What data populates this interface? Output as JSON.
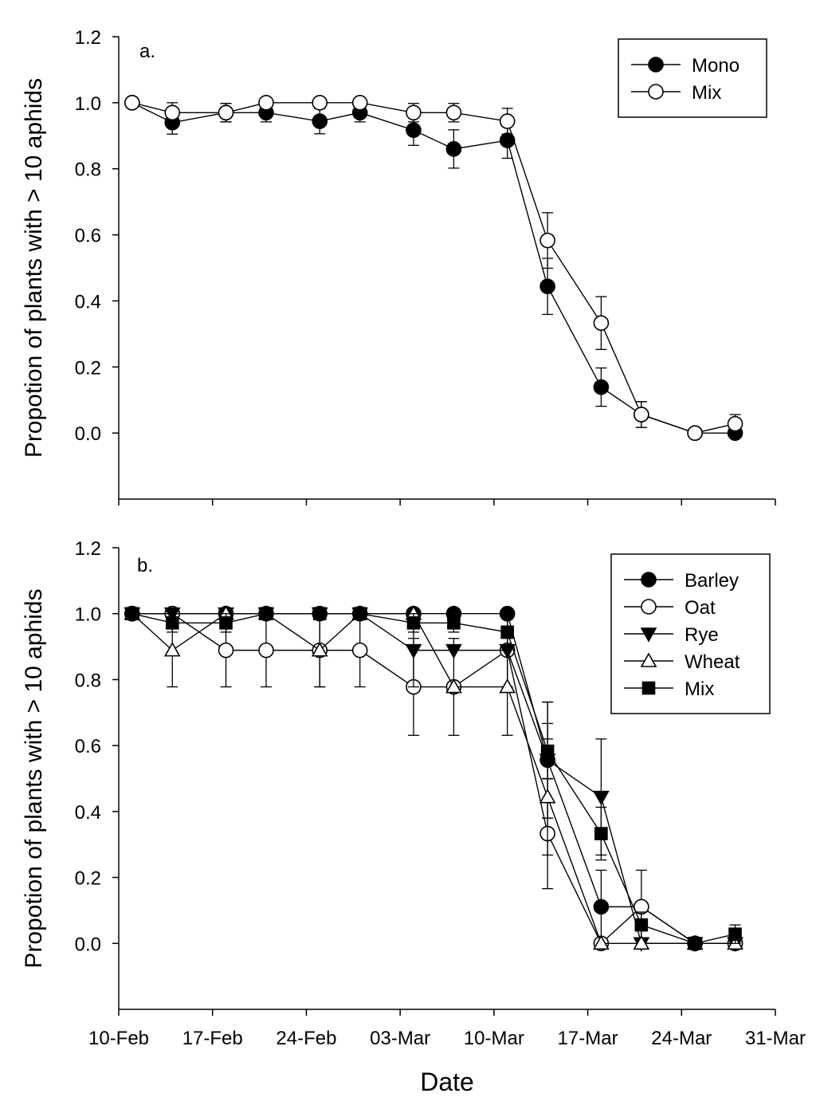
{
  "chart_data": [
    {
      "type": "line",
      "panel": "a.",
      "ylabel": "Propotion of plants with > 10 aphids",
      "xlabel": "",
      "ylim": [
        -0.2,
        1.2
      ],
      "yticks": [
        0.0,
        0.2,
        0.4,
        0.6,
        0.8,
        1.0,
        1.2
      ],
      "ytick_labels": [
        "0.0",
        "0.2",
        "0.4",
        "0.6",
        "0.8",
        "1.0",
        "1.2"
      ],
      "xlim": [
        0,
        49
      ],
      "xticks": [
        0,
        7,
        14,
        21,
        28,
        35,
        42,
        49
      ],
      "xtick_labels": [],
      "legend_position": "top-right",
      "series": [
        {
          "name": "Mono",
          "marker": "circle-filled",
          "x": [
            1,
            4,
            8,
            11,
            15,
            18,
            22,
            25,
            29,
            32,
            36,
            39,
            43,
            46
          ],
          "values": [
            1.0,
            0.94,
            0.97,
            0.97,
            0.944,
            0.97,
            0.917,
            0.86,
            0.886,
            0.444,
            0.139,
            0.056,
            0.0,
            0.0
          ],
          "errors": [
            0,
            0.035,
            0.028,
            0.028,
            0.038,
            0.028,
            0.046,
            0.058,
            0.054,
            0.085,
            0.058,
            0.039,
            0,
            0
          ]
        },
        {
          "name": "Mix",
          "marker": "circle-open",
          "x": [
            1,
            4,
            8,
            11,
            15,
            18,
            22,
            25,
            29,
            32,
            36,
            39,
            43,
            46
          ],
          "values": [
            1.0,
            0.97,
            0.97,
            1.0,
            1.0,
            1.0,
            0.97,
            0.97,
            0.944,
            0.583,
            0.333,
            0.056,
            0.0,
            0.028
          ],
          "errors": [
            0,
            0.03,
            0.028,
            0,
            0,
            0,
            0.028,
            0.028,
            0.039,
            0.084,
            0.08,
            0.039,
            0,
            0.028
          ]
        }
      ]
    },
    {
      "type": "line",
      "panel": "b.",
      "ylabel": "Propotion of plants with > 10 aphids",
      "xlabel": "Date",
      "ylim": [
        -0.2,
        1.2
      ],
      "yticks": [
        0.0,
        0.2,
        0.4,
        0.6,
        0.8,
        1.0,
        1.2
      ],
      "ytick_labels": [
        "0.0",
        "0.2",
        "0.4",
        "0.6",
        "0.8",
        "1.0",
        "1.2"
      ],
      "xlim": [
        0,
        49
      ],
      "xticks": [
        0,
        7,
        14,
        21,
        28,
        35,
        42,
        49
      ],
      "xtick_labels": [
        "10-Feb",
        "17-Feb",
        "24-Feb",
        "03-Mar",
        "10-Mar",
        "17-Mar",
        "24-Mar",
        "31-Mar"
      ],
      "legend_position": "top-right",
      "series": [
        {
          "name": "Barley",
          "marker": "circle-filled",
          "x": [
            1,
            4,
            8,
            11,
            15,
            18,
            22,
            25,
            29,
            32,
            36,
            39,
            43,
            46
          ],
          "values": [
            1.0,
            1.0,
            1.0,
            1.0,
            1.0,
            1.0,
            1.0,
            1.0,
            1.0,
            0.556,
            0.111,
            0.111,
            0.0,
            0.0
          ],
          "errors": [
            0,
            0,
            0,
            0,
            0,
            0,
            0,
            0,
            0,
            0.176,
            0.111,
            0,
            0,
            0
          ]
        },
        {
          "name": "Oat",
          "marker": "circle-open",
          "x": [
            1,
            4,
            8,
            11,
            15,
            18,
            22,
            25,
            29,
            32,
            36,
            39,
            43,
            46
          ],
          "values": [
            1.0,
            1.0,
            0.889,
            0.889,
            0.889,
            0.889,
            0.778,
            0.778,
            0.889,
            0.333,
            0.0,
            0.111,
            0.0,
            0.0
          ],
          "errors": [
            0,
            0,
            0.111,
            0.111,
            0.111,
            0.111,
            0.147,
            0.147,
            0.111,
            0.167,
            0,
            0.111,
            0,
            0
          ]
        },
        {
          "name": "Rye",
          "marker": "triangle-down-filled",
          "x": [
            1,
            4,
            8,
            11,
            15,
            18,
            22,
            25,
            29,
            32,
            36,
            39,
            43,
            46
          ],
          "values": [
            1.0,
            1.0,
            1.0,
            1.0,
            1.0,
            1.0,
            0.889,
            0.889,
            0.889,
            0.556,
            0.444,
            0.0,
            0.0,
            0.0
          ],
          "errors": [
            0,
            0,
            0,
            0,
            0,
            0,
            0.111,
            0,
            0.111,
            0.176,
            0.176,
            0,
            0,
            0
          ]
        },
        {
          "name": "Wheat",
          "marker": "triangle-up-open",
          "x": [
            1,
            4,
            8,
            11,
            15,
            18,
            22,
            25,
            29,
            32,
            36,
            39,
            43,
            46
          ],
          "values": [
            1.0,
            0.889,
            1.0,
            1.0,
            0.889,
            1.0,
            1.0,
            0.778,
            0.778,
            0.444,
            0.0,
            0.0,
            0.0,
            0.0
          ],
          "errors": [
            0,
            0.111,
            0,
            0,
            0.111,
            0,
            0,
            0,
            0.147,
            0.176,
            0,
            0,
            0,
            0
          ]
        },
        {
          "name": "Mix",
          "marker": "square-filled",
          "x": [
            1,
            4,
            8,
            11,
            15,
            18,
            22,
            25,
            29,
            32,
            36,
            39,
            43,
            46
          ],
          "values": [
            1.0,
            0.972,
            0.972,
            1.0,
            1.0,
            1.0,
            0.972,
            0.972,
            0.944,
            0.583,
            0.333,
            0.056,
            0.0,
            0.028
          ],
          "errors": [
            0,
            0.028,
            0.028,
            0,
            0,
            0,
            0.028,
            0.028,
            0.039,
            0.084,
            0.08,
            0.039,
            0,
            0.028
          ]
        }
      ]
    }
  ]
}
